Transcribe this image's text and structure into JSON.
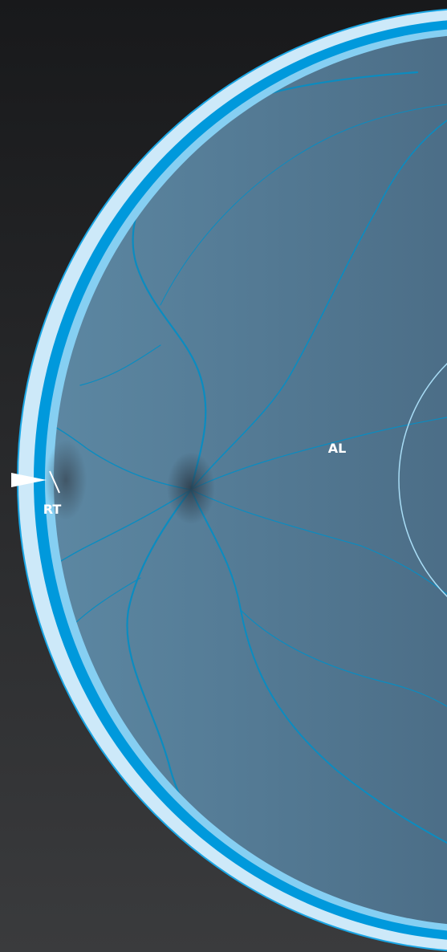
{
  "labels": {
    "axial_length": "AL",
    "retinal_thickness": "RT"
  }
}
